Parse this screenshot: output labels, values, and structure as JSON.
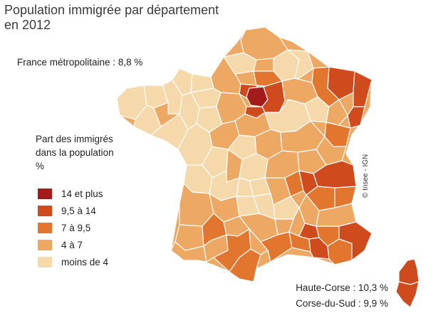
{
  "title": {
    "line1": "Population immigrée par département",
    "line2": "en 2012"
  },
  "national_label": "France métropolitaine : 8,8 %",
  "legend": {
    "title_lines": [
      "Part des immigrés",
      "dans la population",
      "%"
    ],
    "classes": [
      {
        "label": "14 et plus",
        "color": "#a31b1b"
      },
      {
        "label": "9,5 à 14",
        "color": "#cf4a1c"
      },
      {
        "label": "7 à 9,5",
        "color": "#e2762f"
      },
      {
        "label": "4 à 7",
        "color": "#eda964"
      },
      {
        "label": "moins de 4",
        "color": "#f6d9aa"
      }
    ]
  },
  "copyright": "© Insee - IGN",
  "corsica": {
    "haute_corse": "Haute-Corse : 10,3 %",
    "corse_du_sud": "Corse-du-Sud : 9,9 %"
  },
  "colors": {
    "background": "#ffffff",
    "border": "#ffffff",
    "text": "#222222"
  }
}
